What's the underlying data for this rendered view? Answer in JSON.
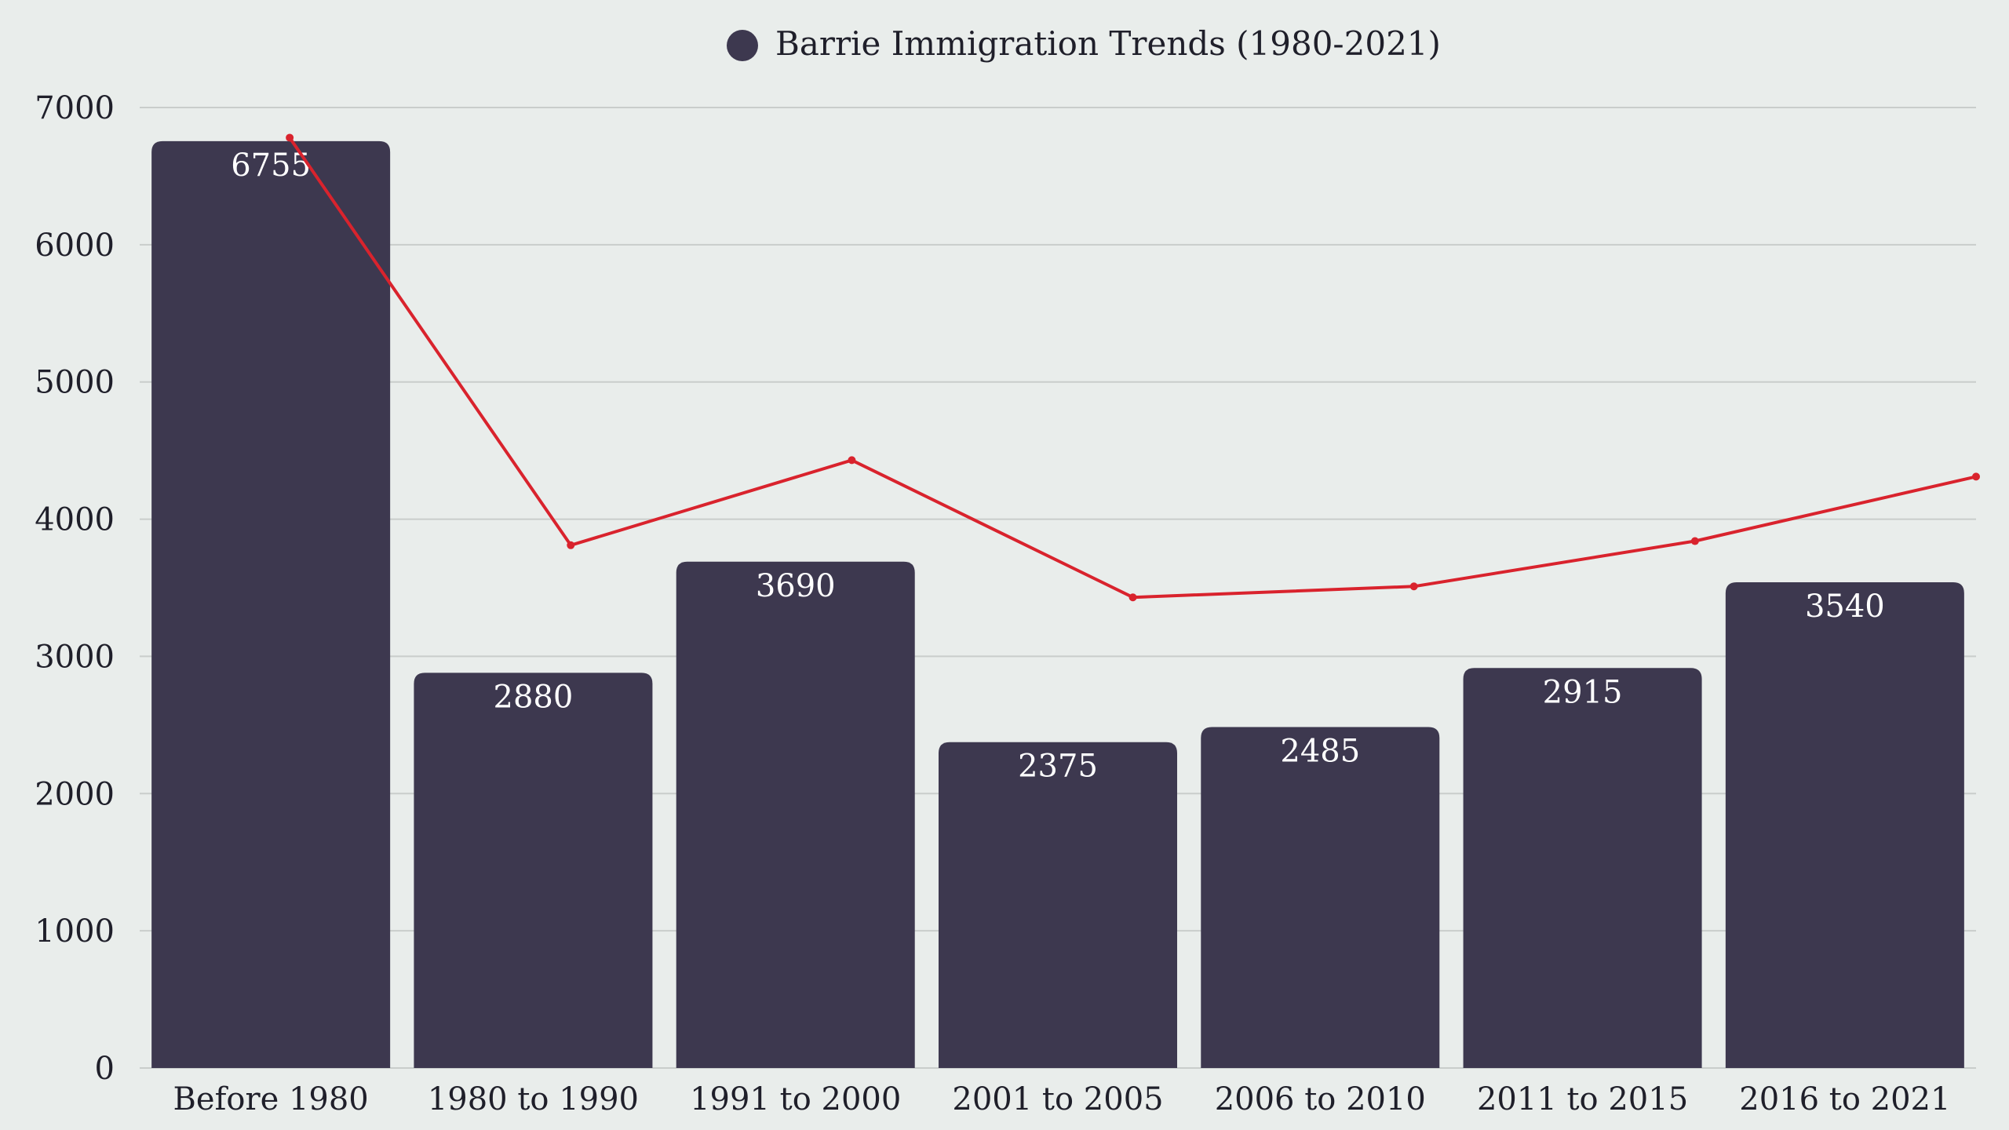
{
  "chart_data": {
    "type": "bar",
    "categories": [
      "Before 1980",
      "1980 to 1990",
      "1991 to 2000",
      "2001 to 2005",
      "2006 to 2010",
      "2011 to 2015",
      "2016 to 2021"
    ],
    "series": [
      {
        "name": "Barrie Immigration Trends (1980-2021)",
        "type": "bar",
        "values": [
          6755,
          2880,
          3690,
          2375,
          2485,
          2915,
          3540
        ],
        "color": "#3D384F"
      },
      {
        "type": "line",
        "values": [
          6780,
          3810,
          4430,
          3430,
          3510,
          3840,
          4310
        ],
        "color": "#D9232D"
      }
    ],
    "ylim": [
      0,
      7000
    ],
    "yticks": [
      0,
      1000,
      2000,
      3000,
      4000,
      5000,
      6000,
      7000
    ],
    "grid": true,
    "legend_position": "top-center",
    "xlabel": "",
    "ylabel": ""
  }
}
